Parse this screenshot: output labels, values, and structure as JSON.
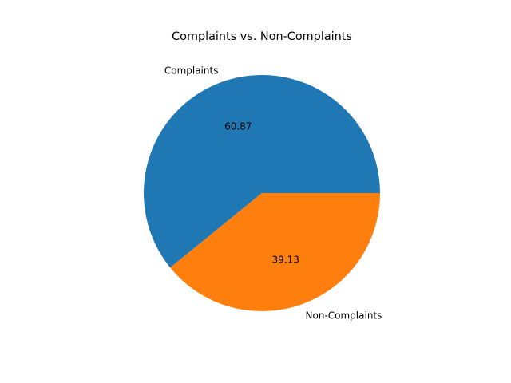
{
  "chart_data": {
    "type": "pie",
    "title": "Complaints vs. Non-Complaints",
    "categories": [
      "Complaints",
      "Non-Complaints"
    ],
    "values": [
      60.87,
      39.13
    ],
    "percent_labels": [
      "60.87",
      "39.13"
    ],
    "colors": [
      "#1f77b4",
      "#ff7f0e"
    ],
    "start_angle_deg": 0,
    "direction": "counterclockwise",
    "legend": "none"
  }
}
